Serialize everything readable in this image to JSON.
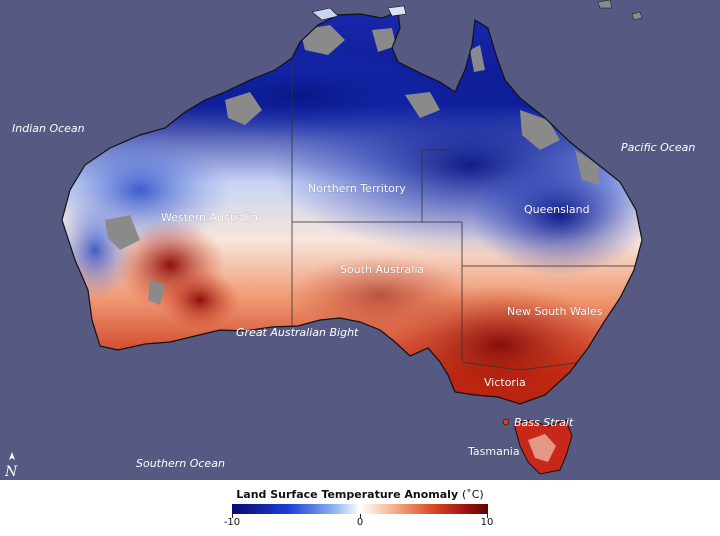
{
  "map": {
    "ocean_color": "#565a82",
    "nodata_color": "#8a8a8a",
    "oceans": {
      "indian": "Indian Ocean",
      "pacific": "Pacific Ocean",
      "southern": "Southern Ocean",
      "bight": "Great Australian Bight",
      "bass": "Bass Strait"
    },
    "states": {
      "nt": "Northern Territory",
      "wa": "Western Australia",
      "qld": "Queensland",
      "sa": "South Australia",
      "nsw": "New South Wales",
      "vic": "Victoria",
      "tas": "Tasmania"
    },
    "north_arrow": "N"
  },
  "legend": {
    "title": "Land Surface Temperature Anomaly",
    "unit": "(˚C)",
    "min_label": "-10",
    "mid_label": "0",
    "max_label": "10",
    "min": -10,
    "max": 10
  }
}
